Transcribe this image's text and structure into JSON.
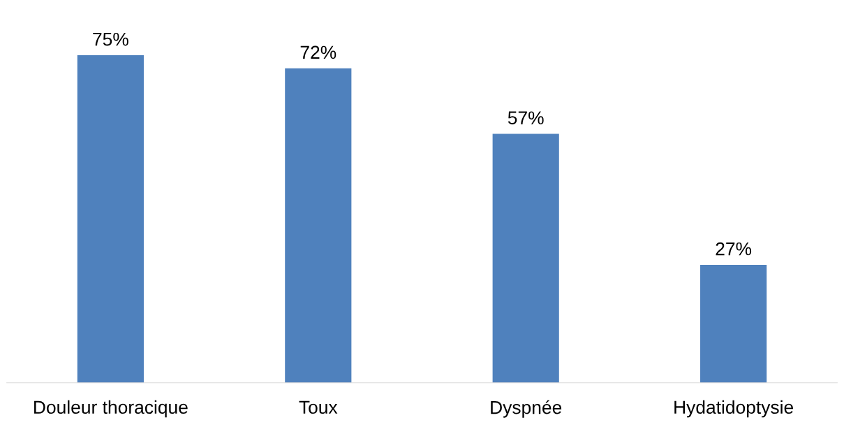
{
  "chart_data": {
    "type": "bar",
    "categories": [
      "Douleur thoracique",
      "Toux",
      "Dyspnée",
      "Hydatidoptysie"
    ],
    "values": [
      75,
      72,
      57,
      27
    ],
    "value_labels": [
      "75%",
      "72%",
      "57%",
      "27%"
    ],
    "color": "#4f81bd",
    "grid": false,
    "legend": false
  }
}
